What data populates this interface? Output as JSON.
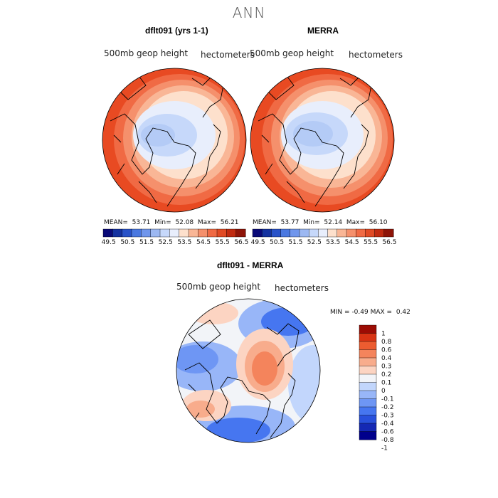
{
  "title": "ANN",
  "colors": {
    "abs_scale": [
      "#0a0a78",
      "#1432a0",
      "#2852c8",
      "#4a78e0",
      "#7096ec",
      "#9cb8f2",
      "#c6d8fa",
      "#e8eefc",
      "#fde0cc",
      "#f9b696",
      "#f5906c",
      "#f06a44",
      "#e04a24",
      "#c02a10",
      "#8e1408"
    ],
    "diff_scale": [
      "#00008c",
      "#1428b4",
      "#2850dc",
      "#4676f0",
      "#6e96f4",
      "#98b6f8",
      "#c2d6fc",
      "#f2f4f8",
      "#fcd4c2",
      "#f8ac8c",
      "#f4845c",
      "#ec5c30",
      "#d83414",
      "#9c0c04"
    ]
  },
  "panels": [
    {
      "title": "dflt091 (yrs 1-1)",
      "var_label": "500mb geop height",
      "units_label": "hectometers",
      "stats": {
        "mean_label": "MEAN=",
        "mean": "53.71",
        "min_label": "Min=",
        "min": "52.08",
        "max_label": "Max=",
        "max": "56.21"
      }
    },
    {
      "title": "MERRA",
      "var_label": "500mb geop height",
      "units_label": "hectometers",
      "stats": {
        "mean_label": "MEAN=",
        "mean": "53.77",
        "min_label": "Min=",
        "min": "52.14",
        "max_label": "Max=",
        "max": "56.10"
      }
    }
  ],
  "abs_ticks": [
    "49.5",
    "50.5",
    "51.5",
    "52.5",
    "53.5",
    "54.5",
    "55.5",
    "56.5"
  ],
  "diff_panel": {
    "title": "dflt091 - MERRA",
    "var_label": "500mb geop height",
    "units_label": "hectometers",
    "minmax": {
      "min_label": "MIN =",
      "min": "-0.49",
      "max_label": "MAX =",
      "max": "0.42"
    },
    "legend_labels": [
      "1",
      "0.8",
      "0.6",
      "0.4",
      "0.3",
      "0.2",
      "0.1",
      "0",
      "-0.1",
      "-0.2",
      "-0.3",
      "-0.4",
      "-0.6",
      "-0.8",
      "-1"
    ]
  }
}
